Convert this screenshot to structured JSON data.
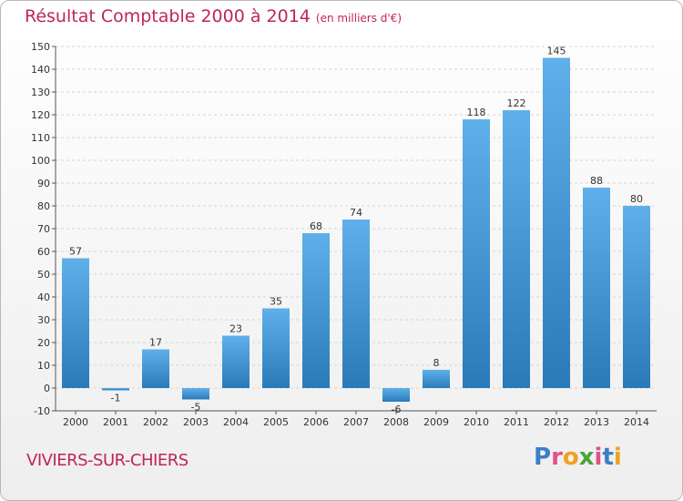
{
  "title": "Résultat Comptable 2000 à 2014",
  "subtitle": "(en milliers d'€)",
  "location": "VIVIERS-SUR-CHIERS",
  "logo": {
    "text": "Proxiti",
    "colors": [
      "#3b7fc4",
      "#e0508c",
      "#f0a020",
      "#4aa53c",
      "#e0508c",
      "#3b7fc4",
      "#f0a020"
    ]
  },
  "colors": {
    "bar_top": "#5fb0ea",
    "bar_bottom": "#2a7ab8",
    "title": "#c0245c",
    "grid": "#d4d4d4"
  },
  "chart_data": {
    "type": "bar",
    "title": "Résultat Comptable 2000 à 2014",
    "subtitle": "(en milliers d'€)",
    "categories": [
      "2000",
      "2001",
      "2002",
      "2003",
      "2004",
      "2005",
      "2006",
      "2007",
      "2008",
      "2009",
      "2010",
      "2011",
      "2012",
      "2013",
      "2014"
    ],
    "values": [
      57,
      -1,
      17,
      -5,
      23,
      35,
      68,
      74,
      -6,
      8,
      118,
      122,
      145,
      88,
      80
    ],
    "ylim": [
      -10,
      150
    ],
    "yticks": [
      -10,
      0,
      10,
      20,
      30,
      40,
      50,
      60,
      70,
      80,
      90,
      100,
      110,
      120,
      130,
      140,
      150
    ],
    "xlabel": "",
    "ylabel": "",
    "grid": true,
    "data_labels": true
  }
}
